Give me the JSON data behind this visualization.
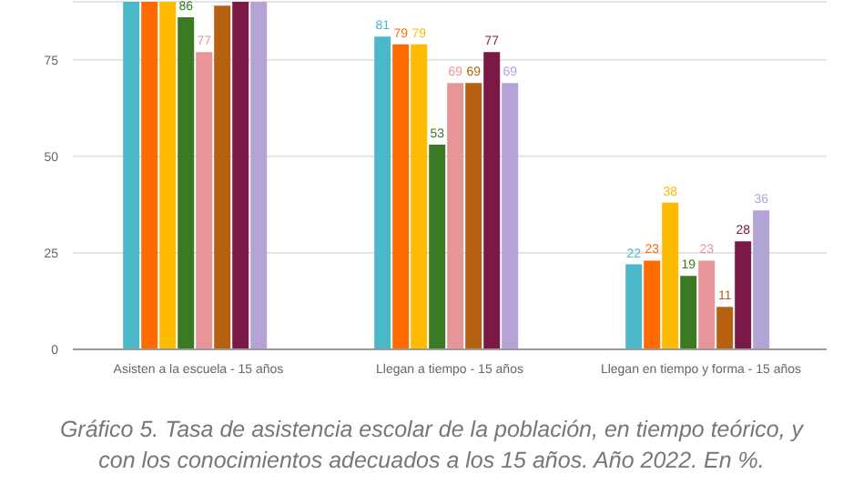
{
  "chart_data": {
    "type": "bar",
    "annotations": [
      "Gráfico 5. Tasa de asistencia escolar de la población, en tiempo teórico, y con los conocimientos adecuados a los 15 años. Año 2022. En %."
    ],
    "categories": [
      "Asisten a la escuela - 15 años",
      "Llegan a tiempo - 15 años",
      "Llegan en tiempo y forma - 15 años"
    ],
    "series": [
      {
        "color": "#4bb8c8",
        "values": [
          90,
          81,
          22
        ],
        "value_labels": [
          null,
          "81",
          "22"
        ]
      },
      {
        "color": "#ff6a00",
        "values": [
          90,
          79,
          23
        ],
        "value_labels": [
          null,
          "79",
          "23"
        ]
      },
      {
        "color": "#ffbb00",
        "values": [
          90,
          79,
          38
        ],
        "value_labels": [
          null,
          "79",
          "38"
        ]
      },
      {
        "color": "#3a7a23",
        "values": [
          86,
          53,
          19
        ],
        "value_labels": [
          "86",
          "53",
          "19"
        ]
      },
      {
        "color": "#e8959a",
        "values": [
          77,
          69,
          23
        ],
        "value_labels": [
          "77",
          "69",
          "23"
        ]
      },
      {
        "color": "#b5610f",
        "values": [
          89,
          69,
          11
        ],
        "value_labels": [
          null,
          "69",
          "11"
        ]
      },
      {
        "color": "#7a1846",
        "values": [
          90,
          77,
          28
        ],
        "value_labels": [
          null,
          "77",
          "28"
        ]
      },
      {
        "color": "#b4a3d6",
        "values": [
          90,
          69,
          36
        ],
        "value_labels": [
          null,
          "69",
          "36"
        ]
      }
    ],
    "ylim": [
      0,
      90
    ],
    "yticks": [
      0,
      25,
      50,
      75
    ],
    "grid": "y"
  }
}
